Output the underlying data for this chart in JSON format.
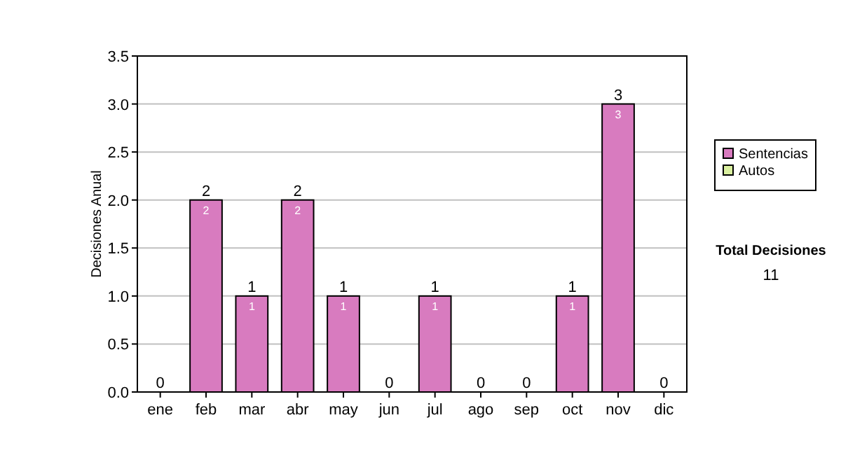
{
  "chart_data": {
    "type": "bar",
    "stacked": true,
    "ylabel": "Decisiones Anual",
    "categories": [
      "ene",
      "feb",
      "mar",
      "abr",
      "may",
      "jun",
      "jul",
      "ago",
      "sep",
      "oct",
      "nov",
      "dic"
    ],
    "series": [
      {
        "name": "Sentencias",
        "color": "#d87bbf",
        "values": [
          0,
          2,
          1,
          2,
          1,
          0,
          1,
          0,
          0,
          1,
          3,
          0
        ],
        "value_labels": [
          null,
          "2",
          "1",
          "2",
          "1",
          null,
          "1",
          null,
          null,
          "1",
          "3",
          null
        ]
      },
      {
        "name": "Autos",
        "color": "#d9ef9f",
        "values": [
          0,
          0,
          0,
          0,
          0,
          0,
          0,
          0,
          0,
          0,
          0,
          0
        ]
      }
    ],
    "totals": [
      "0",
      "2",
      "1",
      "2",
      "1",
      "0",
      "1",
      "0",
      "0",
      "1",
      "3",
      "0"
    ],
    "ylim": [
      0,
      3.5
    ],
    "yticks": [
      {
        "value": 0,
        "label": "0.0"
      },
      {
        "value": 0.5,
        "label": "0.5"
      },
      {
        "value": 1,
        "label": "1.0"
      },
      {
        "value": 1.5,
        "label": "1.5"
      },
      {
        "value": 2,
        "label": "2.0"
      },
      {
        "value": 2.5,
        "label": "2.5"
      },
      {
        "value": 3,
        "label": "3.0"
      },
      {
        "value": 3.5,
        "label": "3.5"
      }
    ],
    "grid": "y",
    "legend": "right",
    "annotations": [
      "Total Decisiones",
      "11"
    ]
  }
}
